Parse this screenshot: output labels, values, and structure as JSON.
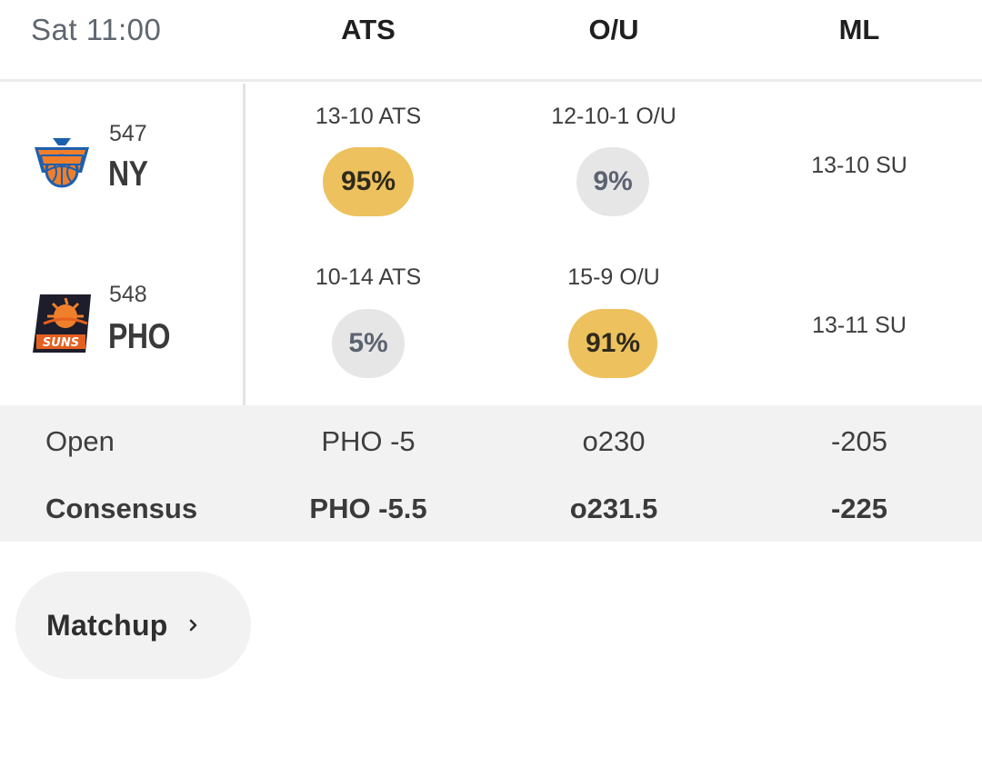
{
  "header": {
    "time": "Sat 11:00",
    "columns": [
      "ATS",
      "O/U",
      "ML"
    ]
  },
  "teams": [
    {
      "rotation": "547",
      "abbr": "NY",
      "logo_icon": "knicks-logo-icon",
      "ats_record": "13-10 ATS",
      "ats_pct": "95%",
      "ou_record": "12-10-1 O/U",
      "ou_pct": "9%",
      "su_record": "13-10 SU"
    },
    {
      "rotation": "548",
      "abbr": "PHO",
      "logo_icon": "suns-logo-icon",
      "ats_record": "10-14 ATS",
      "ats_pct": "5%",
      "ou_record": "15-9 O/U",
      "ou_pct": "91%",
      "su_record": "13-11 SU"
    }
  ],
  "lines": {
    "open": {
      "label": "Open",
      "ats": "PHO -5",
      "ou": "o230",
      "ml": "-205"
    },
    "consensus": {
      "label": "Consensus",
      "ats": "PHO -5.5",
      "ou": "o231.5",
      "ml": "-225"
    }
  },
  "matchup_button": {
    "label": "Matchup",
    "icon": "chevron-right-icon"
  },
  "colors": {
    "highlight_pill": "#edc15d",
    "neutral_pill": "#e6e6e6",
    "band": "#f2f2f2"
  }
}
